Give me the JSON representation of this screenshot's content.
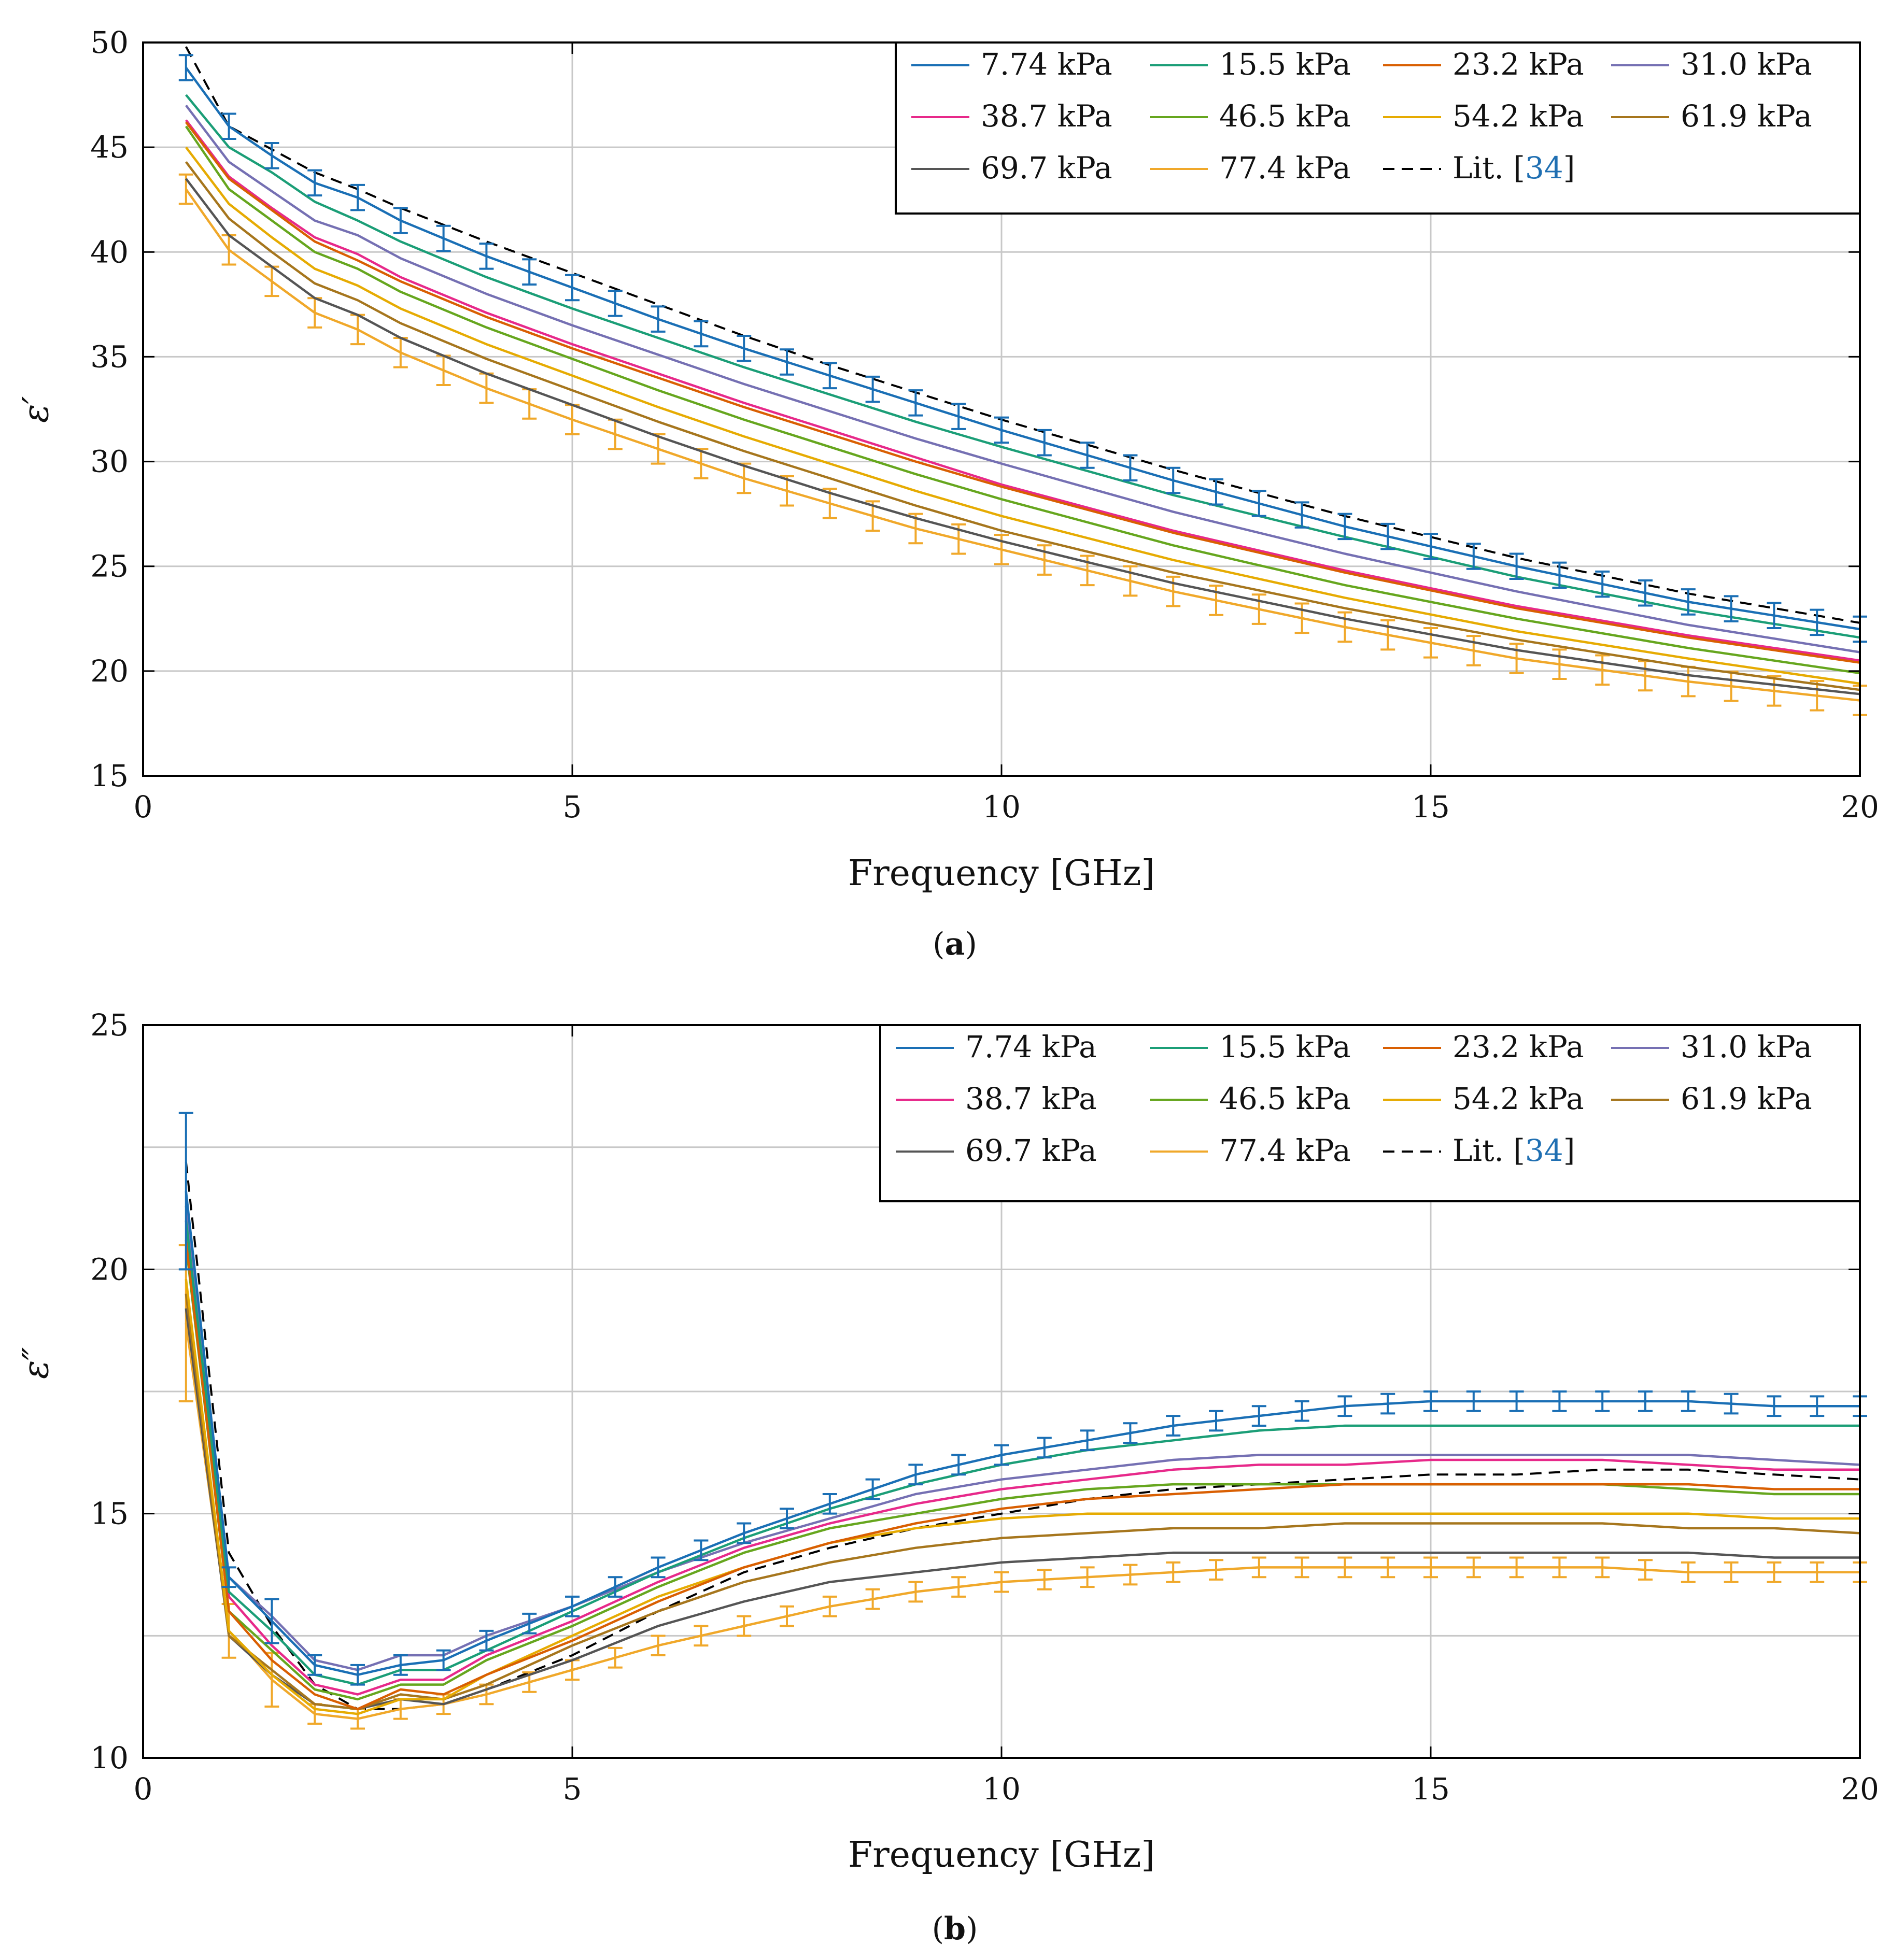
{
  "figure": {
    "caption_a_open": "(",
    "caption_a_letter": "a",
    "caption_a_close": ")",
    "caption_b_open": "(",
    "caption_b_letter": "b",
    "caption_b_close": ")"
  },
  "colors": {
    "7.74 kPa": "#1a6fb5",
    "15.5 kPa": "#1b9e77",
    "23.2 kPa": "#d95f02",
    "31.0 kPa": "#7570b3",
    "38.7 kPa": "#e7298a",
    "46.5 kPa": "#66a61e",
    "54.2 kPa": "#e6ab02",
    "61.9 kPa": "#a6761d",
    "69.7 kPa": "#555555",
    "77.4 kPa": "#f0a82a",
    "lit": "#000000"
  },
  "chart_data": [
    {
      "id": "a",
      "type": "line",
      "xlabel": "Frequency [GHz]",
      "ylabel": "ε′",
      "xlim": [
        0,
        20
      ],
      "ylim": [
        15,
        50
      ],
      "xticks": [
        0,
        5,
        10,
        15,
        20
      ],
      "yticks": [
        15,
        20,
        25,
        30,
        35,
        40,
        45,
        50
      ],
      "xtick_labels": [
        "0",
        "5",
        "10",
        "15",
        "20"
      ],
      "ytick_labels": [
        "15",
        "20",
        "25",
        "30",
        "35",
        "40",
        "45",
        "50"
      ],
      "grid": true,
      "legend_position": "top-right",
      "legend_cite_prefix": "Lit. [",
      "legend_cite_ref": "34",
      "legend_cite_suffix": "]",
      "x": [
        0.5,
        1.0,
        1.5,
        2.0,
        2.5,
        3.0,
        4.0,
        5.0,
        6.0,
        7.0,
        8.0,
        9.0,
        10.0,
        12.0,
        14.0,
        16.0,
        18.0,
        20.0
      ],
      "series": [
        {
          "name": "7.74 kPa",
          "values": [
            48.8,
            46.0,
            44.6,
            43.3,
            42.6,
            41.5,
            39.8,
            38.3,
            36.8,
            35.4,
            34.1,
            32.8,
            31.5,
            29.1,
            26.9,
            25.0,
            23.3,
            22.0
          ],
          "errorbars": true,
          "err": 0.6
        },
        {
          "name": "15.5 kPa",
          "values": [
            47.5,
            45.0,
            43.8,
            42.4,
            41.5,
            40.5,
            38.8,
            37.3,
            35.9,
            34.5,
            33.2,
            31.9,
            30.7,
            28.4,
            26.4,
            24.5,
            22.9,
            21.6
          ]
        },
        {
          "name": "23.2 kPa",
          "values": [
            46.2,
            43.5,
            42.0,
            40.5,
            39.6,
            38.6,
            36.9,
            35.4,
            34.0,
            32.6,
            31.3,
            30.0,
            28.8,
            26.6,
            24.7,
            23.0,
            21.6,
            20.4
          ]
        },
        {
          "name": "31.0 kPa",
          "values": [
            47.0,
            44.3,
            42.9,
            41.5,
            40.8,
            39.7,
            38.0,
            36.5,
            35.1,
            33.7,
            32.4,
            31.1,
            29.9,
            27.6,
            25.6,
            23.8,
            22.2,
            20.9
          ]
        },
        {
          "name": "38.7 kPa",
          "values": [
            46.3,
            43.6,
            42.1,
            40.7,
            39.9,
            38.8,
            37.1,
            35.6,
            34.2,
            32.8,
            31.5,
            30.2,
            28.9,
            26.7,
            24.8,
            23.1,
            21.7,
            20.5
          ]
        },
        {
          "name": "46.5 kPa",
          "values": [
            46.0,
            43.0,
            41.5,
            40.0,
            39.2,
            38.1,
            36.4,
            34.9,
            33.4,
            32.0,
            30.7,
            29.4,
            28.2,
            26.0,
            24.1,
            22.5,
            21.1,
            19.9
          ]
        },
        {
          "name": "54.2 kPa",
          "values": [
            45.0,
            42.3,
            40.7,
            39.2,
            38.4,
            37.3,
            35.6,
            34.1,
            32.6,
            31.2,
            29.9,
            28.6,
            27.4,
            25.3,
            23.5,
            21.9,
            20.6,
            19.4
          ]
        },
        {
          "name": "61.9 kPa",
          "values": [
            44.3,
            41.6,
            40.0,
            38.5,
            37.7,
            36.6,
            34.9,
            33.4,
            31.9,
            30.5,
            29.2,
            27.9,
            26.7,
            24.7,
            23.0,
            21.5,
            20.2,
            19.1
          ]
        },
        {
          "name": "69.7 kPa",
          "values": [
            43.5,
            40.8,
            39.3,
            37.8,
            37.0,
            35.9,
            34.2,
            32.7,
            31.2,
            29.8,
            28.5,
            27.3,
            26.2,
            24.2,
            22.5,
            21.0,
            19.8,
            18.9
          ]
        },
        {
          "name": "77.4 kPa",
          "values": [
            43.0,
            40.1,
            38.6,
            37.1,
            36.3,
            35.2,
            33.5,
            32.0,
            30.6,
            29.2,
            28.0,
            26.8,
            25.8,
            23.8,
            22.1,
            20.6,
            19.5,
            18.6
          ],
          "errorbars": true,
          "err": 0.7
        },
        {
          "name": "Lit. [34]",
          "values": [
            49.8,
            46.0,
            44.9,
            43.8,
            43.0,
            42.1,
            40.5,
            39.0,
            37.5,
            36.0,
            34.6,
            33.3,
            32.0,
            29.6,
            27.4,
            25.4,
            23.7,
            22.3
          ],
          "dashed": true
        }
      ]
    },
    {
      "id": "b",
      "type": "line",
      "xlabel": "Frequency [GHz]",
      "ylabel": "ε″",
      "xlim": [
        0,
        20
      ],
      "ylim": [
        10,
        25
      ],
      "xticks": [
        0,
        5,
        10,
        15,
        20
      ],
      "yticks": [
        10,
        15,
        20,
        25
      ],
      "xtick_labels": [
        "0",
        "5",
        "10",
        "15",
        "20"
      ],
      "ytick_labels": [
        "10",
        "15",
        "20",
        "25"
      ],
      "minor_gridlines_y": [
        12.5,
        17.5,
        22.5
      ],
      "grid": true,
      "legend_position": "top-right",
      "legend_cite_prefix": "Lit. [",
      "legend_cite_ref": "34",
      "legend_cite_suffix": "]",
      "x": [
        0.5,
        1.0,
        1.5,
        2.0,
        2.5,
        3.0,
        3.5,
        4.0,
        5.0,
        6.0,
        7.0,
        8.0,
        9.0,
        10.0,
        11.0,
        12.0,
        13.0,
        14.0,
        15.0,
        16.0,
        17.0,
        18.0,
        19.0,
        20.0
      ],
      "series": [
        {
          "name": "7.74 kPa",
          "values": [
            21.6,
            13.7,
            12.8,
            11.9,
            11.7,
            11.9,
            12.0,
            12.4,
            13.1,
            13.9,
            14.6,
            15.2,
            15.8,
            16.2,
            16.5,
            16.8,
            17.0,
            17.2,
            17.3,
            17.3,
            17.3,
            17.3,
            17.2,
            17.2
          ],
          "errorbars": true,
          "err": 0.2,
          "err_overrides": [
            [
              0.5,
              1.6
            ],
            [
              1.5,
              0.45
            ]
          ]
        },
        {
          "name": "15.5 kPa",
          "values": [
            21.0,
            13.4,
            12.6,
            11.7,
            11.5,
            11.8,
            11.8,
            12.2,
            13.0,
            13.8,
            14.5,
            15.1,
            15.6,
            16.0,
            16.3,
            16.5,
            16.7,
            16.8,
            16.8,
            16.8,
            16.8,
            16.8,
            16.8,
            16.8
          ]
        },
        {
          "name": "23.2 kPa",
          "values": [
            20.6,
            13.0,
            12.0,
            11.3,
            11.0,
            11.4,
            11.3,
            11.7,
            12.4,
            13.2,
            13.9,
            14.4,
            14.8,
            15.1,
            15.3,
            15.4,
            15.5,
            15.6,
            15.6,
            15.6,
            15.6,
            15.6,
            15.5,
            15.5
          ]
        },
        {
          "name": "31.0 kPa",
          "values": [
            21.3,
            13.7,
            12.9,
            12.0,
            11.8,
            12.1,
            12.1,
            12.5,
            13.1,
            13.8,
            14.4,
            14.9,
            15.4,
            15.7,
            15.9,
            16.1,
            16.2,
            16.2,
            16.2,
            16.2,
            16.2,
            16.2,
            16.1,
            16.0
          ]
        },
        {
          "name": "38.7 kPa",
          "values": [
            21.0,
            13.3,
            12.3,
            11.5,
            11.3,
            11.6,
            11.6,
            12.1,
            12.8,
            13.6,
            14.3,
            14.8,
            15.2,
            15.5,
            15.7,
            15.9,
            16.0,
            16.0,
            16.1,
            16.1,
            16.1,
            16.0,
            15.9,
            15.9
          ]
        },
        {
          "name": "46.5 kPa",
          "values": [
            20.5,
            13.0,
            12.2,
            11.4,
            11.2,
            11.5,
            11.5,
            12.0,
            12.7,
            13.5,
            14.2,
            14.7,
            15.0,
            15.3,
            15.5,
            15.6,
            15.6,
            15.6,
            15.6,
            15.6,
            15.6,
            15.5,
            15.4,
            15.4
          ]
        },
        {
          "name": "54.2 kPa",
          "values": [
            19.8,
            12.6,
            11.7,
            11.0,
            10.9,
            11.2,
            11.2,
            11.7,
            12.5,
            13.3,
            13.9,
            14.4,
            14.7,
            14.9,
            15.0,
            15.0,
            15.0,
            15.0,
            15.0,
            15.0,
            15.0,
            15.0,
            14.9,
            14.9
          ]
        },
        {
          "name": "61.9 kPa",
          "values": [
            19.5,
            12.5,
            11.8,
            11.1,
            11.0,
            11.3,
            11.2,
            11.5,
            12.3,
            13.0,
            13.6,
            14.0,
            14.3,
            14.5,
            14.6,
            14.7,
            14.7,
            14.8,
            14.8,
            14.8,
            14.8,
            14.7,
            14.7,
            14.6
          ]
        },
        {
          "name": "69.7 kPa",
          "values": [
            19.2,
            12.5,
            11.7,
            11.1,
            11.0,
            11.2,
            11.1,
            11.4,
            12.0,
            12.7,
            13.2,
            13.6,
            13.8,
            14.0,
            14.1,
            14.2,
            14.2,
            14.2,
            14.2,
            14.2,
            14.2,
            14.2,
            14.1,
            14.1
          ]
        },
        {
          "name": "77.4 kPa",
          "values": [
            18.9,
            12.6,
            11.6,
            10.9,
            10.8,
            11.0,
            11.1,
            11.3,
            11.8,
            12.3,
            12.7,
            13.1,
            13.4,
            13.6,
            13.7,
            13.8,
            13.9,
            13.9,
            13.9,
            13.9,
            13.9,
            13.8,
            13.8,
            13.8
          ],
          "errorbars": true,
          "err": 0.2,
          "err_overrides": [
            [
              0.5,
              1.6
            ],
            [
              1.0,
              0.55
            ],
            [
              1.5,
              0.55
            ]
          ]
        },
        {
          "name": "Lit. [34]",
          "values": [
            22.2,
            14.2,
            12.7,
            11.5,
            11.0,
            11.0,
            11.1,
            11.4,
            12.1,
            13.0,
            13.8,
            14.3,
            14.7,
            15.0,
            15.3,
            15.5,
            15.6,
            15.7,
            15.8,
            15.8,
            15.9,
            15.9,
            15.8,
            15.7
          ],
          "dashed": true
        }
      ]
    }
  ]
}
